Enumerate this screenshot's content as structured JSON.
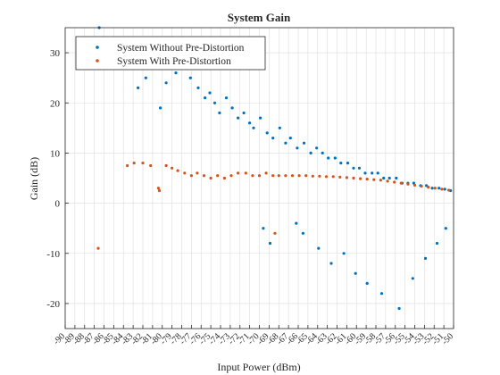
{
  "chart_data": {
    "type": "scatter",
    "title": "System Gain",
    "xlabel": "Input Power (dBm)",
    "ylabel": "Gain (dB)",
    "xlim": [
      -90,
      -50
    ],
    "ylim": [
      -25,
      35
    ],
    "x_ticks": [
      -90,
      -89,
      -88,
      -87,
      -86,
      -85,
      -84,
      -83,
      -82,
      -81,
      -80,
      -79,
      -78,
      -77,
      -76,
      -75,
      -74,
      -73,
      -72,
      -71,
      -70,
      -69,
      -68,
      -67,
      -66,
      -65,
      -64,
      -63,
      -62,
      -61,
      -60,
      -59,
      -58,
      -57,
      -56,
      -55,
      -54,
      -53,
      -52,
      -51,
      -50
    ],
    "y_ticks": [
      -20,
      -10,
      0,
      10,
      20,
      30
    ],
    "grid": true,
    "legend_position": "top-left",
    "series": [
      {
        "name": "System Without Pre-Distortion",
        "color": "#0072BD",
        "points": [
          [
            -86.5,
            35
          ],
          [
            -82.5,
            23
          ],
          [
            -81.7,
            25
          ],
          [
            -80.2,
            19
          ],
          [
            -79.6,
            24
          ],
          [
            -78.6,
            26
          ],
          [
            -77.9,
            27
          ],
          [
            -77.1,
            25
          ],
          [
            -76.3,
            23
          ],
          [
            -75.6,
            21
          ],
          [
            -75.1,
            22
          ],
          [
            -74.6,
            20
          ],
          [
            -74.1,
            18
          ],
          [
            -73.4,
            21
          ],
          [
            -72.8,
            19
          ],
          [
            -72.2,
            17
          ],
          [
            -71.6,
            18
          ],
          [
            -71.0,
            16
          ],
          [
            -70.6,
            15
          ],
          [
            -69.9,
            17
          ],
          [
            -69.2,
            14
          ],
          [
            -68.6,
            13
          ],
          [
            -67.9,
            15
          ],
          [
            -67.3,
            12
          ],
          [
            -66.8,
            13
          ],
          [
            -66.1,
            11
          ],
          [
            -65.4,
            12
          ],
          [
            -64.7,
            10
          ],
          [
            -64.1,
            11
          ],
          [
            -63.5,
            10
          ],
          [
            -62.9,
            9
          ],
          [
            -62.2,
            9
          ],
          [
            -61.6,
            8
          ],
          [
            -60.9,
            8
          ],
          [
            -60.3,
            7
          ],
          [
            -59.7,
            7
          ],
          [
            -59.1,
            6
          ],
          [
            -58.4,
            6
          ],
          [
            -57.8,
            6
          ],
          [
            -57.2,
            5
          ],
          [
            -56.6,
            5
          ],
          [
            -55.9,
            5
          ],
          [
            -55.3,
            4
          ],
          [
            -54.7,
            4
          ],
          [
            -54.1,
            4
          ],
          [
            -53.4,
            3.5
          ],
          [
            -52.8,
            3.5
          ],
          [
            -52.2,
            3
          ],
          [
            -51.5,
            3
          ],
          [
            -50.9,
            2.8
          ],
          [
            -50.3,
            2.5
          ],
          [
            -69.6,
            -5
          ],
          [
            -68.9,
            -8
          ],
          [
            -66.2,
            -4
          ],
          [
            -65.5,
            -6
          ],
          [
            -63.9,
            -9
          ],
          [
            -62.6,
            -12
          ],
          [
            -61.3,
            -10
          ],
          [
            -60.1,
            -14
          ],
          [
            -58.9,
            -16
          ],
          [
            -57.4,
            -18
          ],
          [
            -55.6,
            -21
          ],
          [
            -54.2,
            -15
          ],
          [
            -52.9,
            -11
          ],
          [
            -51.7,
            -8
          ],
          [
            -50.8,
            -5
          ]
        ]
      },
      {
        "name": "System With Pre-Distortion",
        "color": "#D95319",
        "points": [
          [
            -86.6,
            -9
          ],
          [
            -83.6,
            7.5
          ],
          [
            -82.9,
            8
          ],
          [
            -82.0,
            8
          ],
          [
            -81.2,
            7.5
          ],
          [
            -80.4,
            3
          ],
          [
            -80.3,
            2.5
          ],
          [
            -79.6,
            7.5
          ],
          [
            -79.0,
            7
          ],
          [
            -78.4,
            6.5
          ],
          [
            -77.7,
            6
          ],
          [
            -77.0,
            5.5
          ],
          [
            -76.4,
            6
          ],
          [
            -75.7,
            5.5
          ],
          [
            -75.0,
            5
          ],
          [
            -74.3,
            5.5
          ],
          [
            -73.6,
            5
          ],
          [
            -72.9,
            5.5
          ],
          [
            -72.2,
            6
          ],
          [
            -71.4,
            6
          ],
          [
            -70.7,
            5.5
          ],
          [
            -70.0,
            5.5
          ],
          [
            -69.3,
            6
          ],
          [
            -68.6,
            5.5
          ],
          [
            -68.0,
            5.5
          ],
          [
            -67.3,
            5.5
          ],
          [
            -66.6,
            5.5
          ],
          [
            -65.9,
            5.5
          ],
          [
            -65.2,
            5.5
          ],
          [
            -64.5,
            5.4
          ],
          [
            -63.8,
            5.4
          ],
          [
            -63.1,
            5.3
          ],
          [
            -62.4,
            5.3
          ],
          [
            -61.7,
            5.2
          ],
          [
            -61.0,
            5.1
          ],
          [
            -60.3,
            5.0
          ],
          [
            -59.6,
            4.9
          ],
          [
            -58.9,
            4.8
          ],
          [
            -58.2,
            4.7
          ],
          [
            -57.5,
            4.6
          ],
          [
            -56.8,
            4.4
          ],
          [
            -56.1,
            4.2
          ],
          [
            -55.4,
            4.0
          ],
          [
            -54.7,
            3.8
          ],
          [
            -54.0,
            3.6
          ],
          [
            -53.3,
            3.4
          ],
          [
            -52.6,
            3.2
          ],
          [
            -51.9,
            3.0
          ],
          [
            -51.2,
            2.8
          ],
          [
            -50.5,
            2.6
          ],
          [
            -68.4,
            -6
          ]
        ]
      }
    ]
  }
}
